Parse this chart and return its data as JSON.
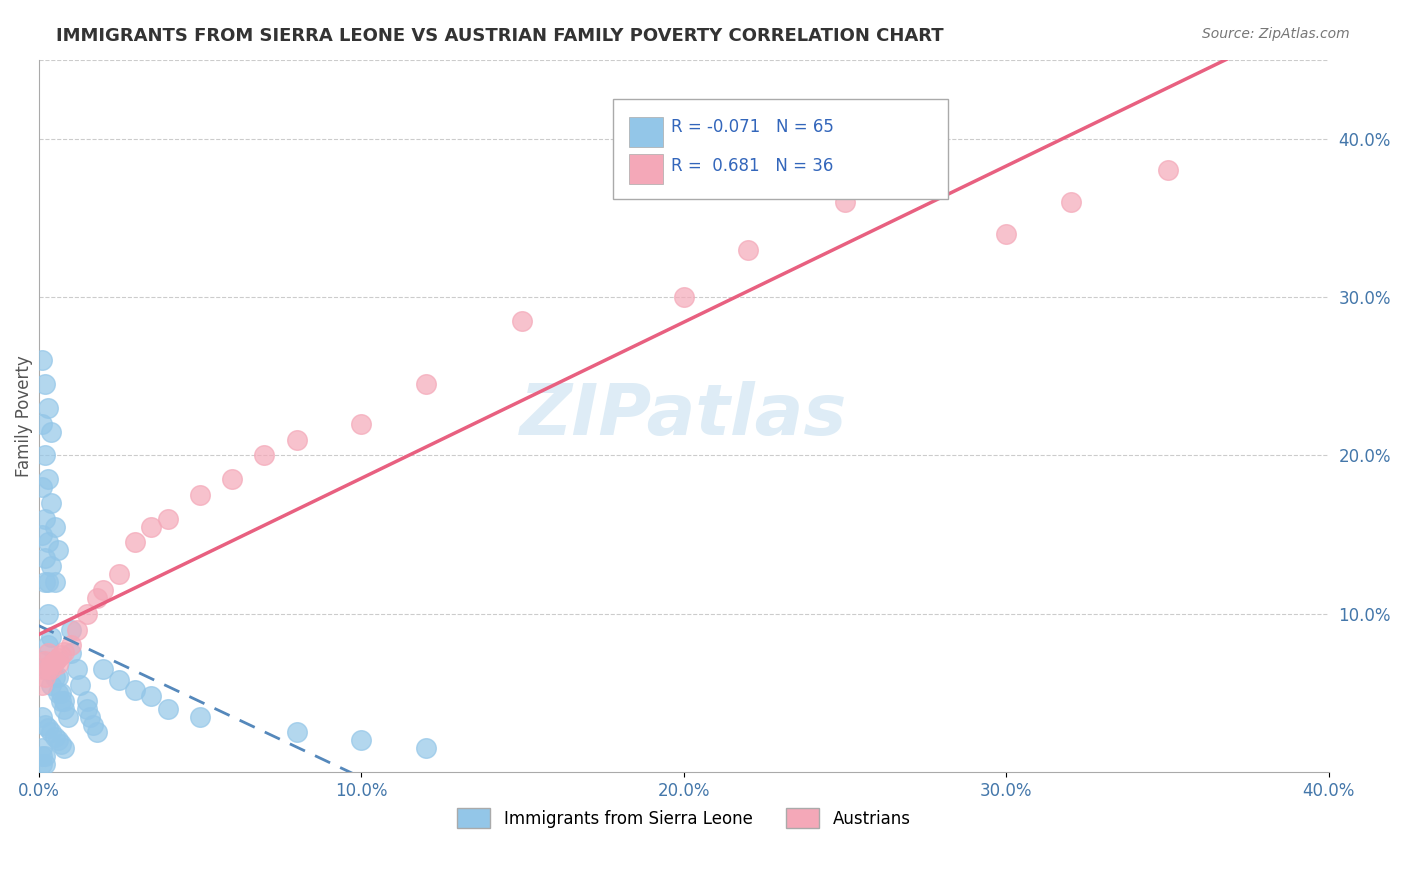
{
  "title": "IMMIGRANTS FROM SIERRA LEONE VS AUSTRIAN FAMILY POVERTY CORRELATION CHART",
  "source": "Source: ZipAtlas.com",
  "xlabel": "",
  "ylabel": "Family Poverty",
  "legend_labels": [
    "Immigrants from Sierra Leone",
    "Austrians"
  ],
  "r_sierra": -0.071,
  "n_sierra": 65,
  "r_austrian": 0.681,
  "n_austrian": 36,
  "color_sierra": "#93C6E8",
  "color_austrian": "#F4A8B8",
  "color_sierra_line": "#5588BB",
  "color_austrian_line": "#E86080",
  "watermark": "ZIPatlas",
  "xlim": [
    0.0,
    0.4
  ],
  "ylim": [
    0.0,
    0.45
  ],
  "xticks": [
    0.0,
    0.1,
    0.2,
    0.3,
    0.4
  ],
  "yticks_right": [
    0.1,
    0.2,
    0.3,
    0.4
  ],
  "sierra_x": [
    0.001,
    0.002,
    0.003,
    0.004,
    0.005,
    0.006,
    0.007,
    0.008,
    0.009,
    0.01,
    0.01,
    0.012,
    0.013,
    0.015,
    0.015,
    0.016,
    0.017,
    0.018,
    0.002,
    0.003,
    0.004,
    0.005,
    0.006,
    0.007,
    0.008,
    0.001,
    0.002,
    0.003,
    0.004,
    0.005,
    0.001,
    0.002,
    0.003,
    0.004,
    0.005,
    0.006,
    0.001,
    0.002,
    0.003,
    0.004,
    0.001,
    0.002,
    0.003,
    0.02,
    0.025,
    0.03,
    0.035,
    0.04,
    0.05,
    0.001,
    0.002,
    0.001,
    0.002,
    0.001,
    0.08,
    0.1,
    0.12,
    0.001,
    0.002,
    0.003,
    0.004,
    0.005,
    0.006,
    0.007,
    0.008
  ],
  "sierra_y": [
    0.07,
    0.065,
    0.08,
    0.055,
    0.06,
    0.05,
    0.045,
    0.04,
    0.035,
    0.09,
    0.075,
    0.065,
    0.055,
    0.045,
    0.04,
    0.035,
    0.03,
    0.025,
    0.12,
    0.1,
    0.085,
    0.07,
    0.06,
    0.05,
    0.045,
    0.18,
    0.16,
    0.145,
    0.13,
    0.12,
    0.22,
    0.2,
    0.185,
    0.17,
    0.155,
    0.14,
    0.26,
    0.245,
    0.23,
    0.215,
    0.15,
    0.135,
    0.12,
    0.065,
    0.058,
    0.052,
    0.048,
    0.04,
    0.035,
    0.005,
    0.005,
    0.01,
    0.01,
    0.015,
    0.025,
    0.02,
    0.015,
    0.035,
    0.03,
    0.028,
    0.025,
    0.022,
    0.02,
    0.018,
    0.015
  ],
  "austrian_x": [
    0.001,
    0.002,
    0.003,
    0.004,
    0.005,
    0.006,
    0.01,
    0.012,
    0.015,
    0.018,
    0.02,
    0.025,
    0.03,
    0.035,
    0.04,
    0.05,
    0.06,
    0.07,
    0.08,
    0.1,
    0.12,
    0.15,
    0.2,
    0.22,
    0.25,
    0.3,
    0.32,
    0.35,
    0.001,
    0.002,
    0.003,
    0.004,
    0.005,
    0.006,
    0.007,
    0.008
  ],
  "austrian_y": [
    0.065,
    0.07,
    0.075,
    0.065,
    0.07,
    0.068,
    0.08,
    0.09,
    0.1,
    0.11,
    0.115,
    0.125,
    0.145,
    0.155,
    0.16,
    0.175,
    0.185,
    0.2,
    0.21,
    0.22,
    0.245,
    0.285,
    0.3,
    0.33,
    0.36,
    0.34,
    0.36,
    0.38,
    0.055,
    0.06,
    0.065,
    0.068,
    0.07,
    0.072,
    0.074,
    0.076
  ]
}
